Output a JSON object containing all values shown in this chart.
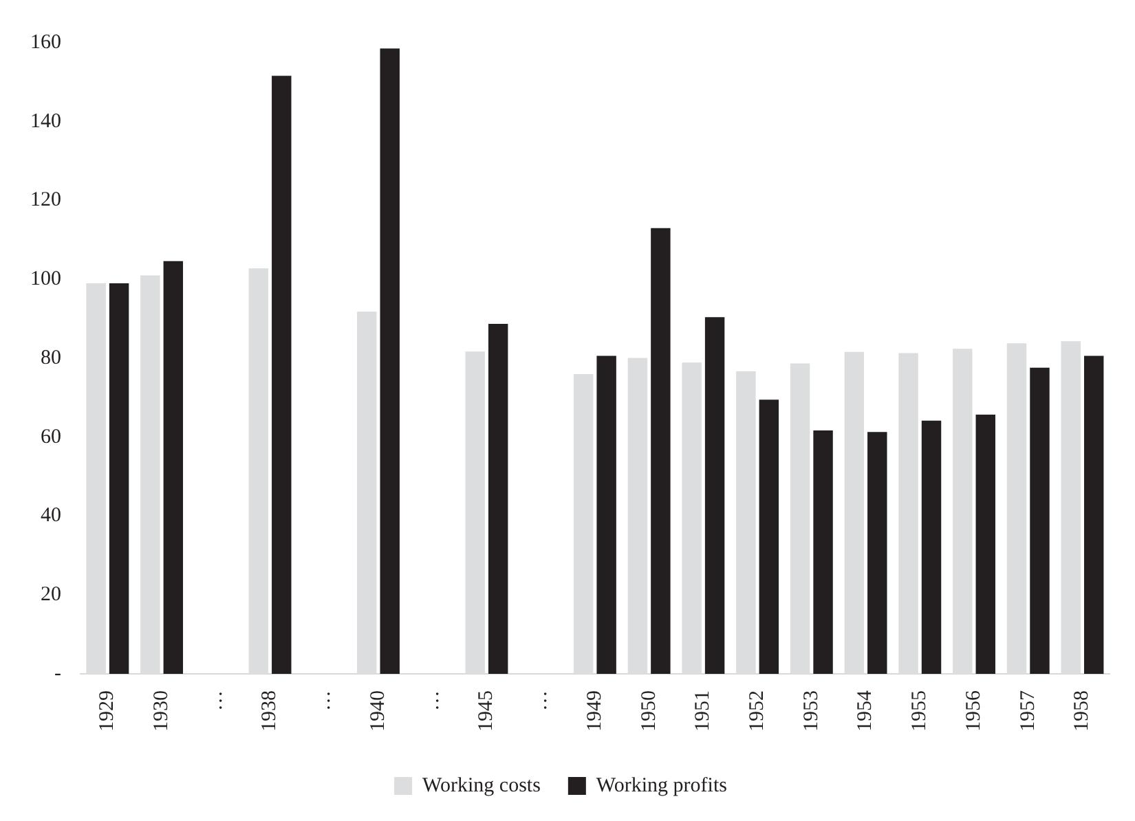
{
  "chart_data": {
    "type": "bar",
    "categories": [
      "1929",
      "1930",
      "…",
      "1938",
      "…",
      "1940",
      "…",
      "1945",
      "…",
      "1949",
      "1950",
      "1951",
      "1952",
      "1953",
      "1954",
      "1955",
      "1956",
      "1957",
      "1958"
    ],
    "series": [
      {
        "name": "Working costs",
        "color": "#dcdddf",
        "values": [
          99,
          101,
          null,
          102.8,
          null,
          91.8,
          null,
          81.7,
          null,
          76,
          80.1,
          78.9,
          76.7,
          78.7,
          81.6,
          81.3,
          82.4,
          83.8,
          84.3
        ]
      },
      {
        "name": "Working profits",
        "color": "#231f20",
        "values": [
          99,
          104.6,
          null,
          151.6,
          null,
          158.5,
          null,
          88.7,
          null,
          80.6,
          113,
          90.4,
          69.5,
          61.7,
          61.3,
          64.2,
          65.7,
          77.6,
          80.6
        ]
      }
    ],
    "ylim": [
      0,
      160
    ],
    "yticks": [
      {
        "value": 0,
        "label": "-"
      },
      20,
      40,
      60,
      80,
      100,
      120,
      140,
      160
    ],
    "grid": false,
    "legend": "bottom"
  }
}
